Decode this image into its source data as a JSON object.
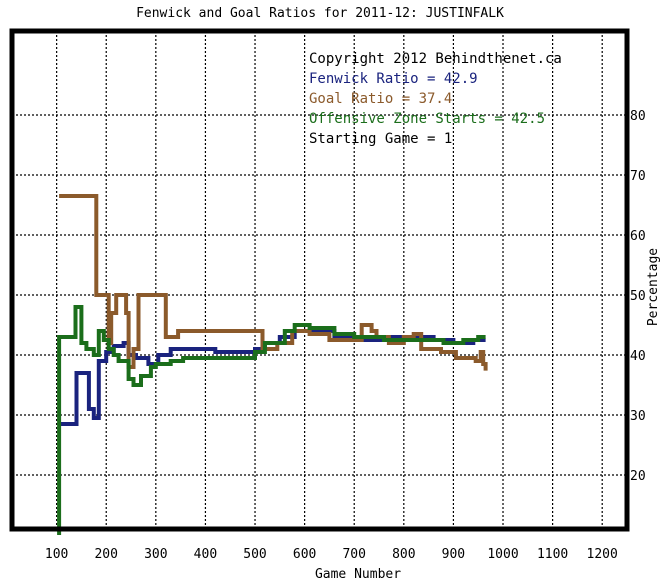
{
  "chart_data": {
    "type": "line",
    "title": "Fenwick and Goal Ratios for 2011-12: JUSTINFALK",
    "xlabel": "Game Number",
    "ylabel": "Percentage",
    "xlim": [
      10,
      1250
    ],
    "ylim": [
      11,
      94
    ],
    "xticks": [
      100,
      200,
      300,
      400,
      500,
      600,
      700,
      800,
      900,
      1000,
      1100,
      1200
    ],
    "yticks": [
      20,
      30,
      40,
      50,
      60,
      70,
      80
    ],
    "grid": true,
    "y_axis_side": "right",
    "legend_position": "top-right",
    "annotations": [
      {
        "text": "Copyright 2012 Behindthenet.ca",
        "color": "#000000"
      },
      {
        "text": "Fenwick Ratio = 42.9",
        "color": "#1a237e"
      },
      {
        "text": "Goal Ratio = 37.4",
        "color": "#8b5a2b"
      },
      {
        "text": "Offensive Zone Starts = 42.5",
        "color": "#1b6e1b"
      },
      {
        "text": "Starting Game = 1",
        "color": "#000000"
      }
    ],
    "series": [
      {
        "color": "#1a237e",
        "points": [
          [
            105,
            28.5
          ],
          [
            140,
            28.5
          ],
          [
            140,
            37
          ],
          [
            165,
            37
          ],
          [
            165,
            31
          ],
          [
            175,
            31
          ],
          [
            175,
            29.5
          ],
          [
            185,
            29.5
          ],
          [
            185,
            39
          ],
          [
            200,
            39
          ],
          [
            200,
            40.5
          ],
          [
            215,
            40.5
          ],
          [
            215,
            41.5
          ],
          [
            235,
            41.5
          ],
          [
            235,
            42
          ],
          [
            245,
            42
          ],
          [
            245,
            40
          ],
          [
            260,
            40
          ],
          [
            260,
            39.5
          ],
          [
            285,
            39.5
          ],
          [
            285,
            38.5
          ],
          [
            305,
            38.5
          ],
          [
            305,
            40
          ],
          [
            330,
            40
          ],
          [
            330,
            41
          ],
          [
            420,
            41
          ],
          [
            420,
            40.5
          ],
          [
            500,
            40.5
          ],
          [
            500,
            41
          ],
          [
            520,
            41
          ],
          [
            520,
            42
          ],
          [
            550,
            42
          ],
          [
            550,
            43
          ],
          [
            580,
            43
          ],
          [
            580,
            44
          ],
          [
            660,
            44
          ],
          [
            660,
            43
          ],
          [
            700,
            43
          ],
          [
            700,
            42.5
          ],
          [
            760,
            42.5
          ],
          [
            760,
            43
          ],
          [
            820,
            43
          ],
          [
            820,
            43
          ],
          [
            860,
            43
          ],
          [
            860,
            42.5
          ],
          [
            900,
            42.5
          ],
          [
            900,
            42
          ],
          [
            940,
            42
          ],
          [
            940,
            42.5
          ],
          [
            965,
            42.5
          ]
        ]
      },
      {
        "color": "#8b5a2b",
        "points": [
          [
            105,
            66.5
          ],
          [
            180,
            66.5
          ],
          [
            180,
            50
          ],
          [
            205,
            50
          ],
          [
            205,
            42
          ],
          [
            210,
            42
          ],
          [
            210,
            47
          ],
          [
            220,
            47
          ],
          [
            220,
            50
          ],
          [
            240,
            50
          ],
          [
            240,
            47
          ],
          [
            245,
            47
          ],
          [
            245,
            38
          ],
          [
            255,
            38
          ],
          [
            255,
            41
          ],
          [
            265,
            41
          ],
          [
            265,
            50
          ],
          [
            320,
            50
          ],
          [
            320,
            43
          ],
          [
            345,
            43
          ],
          [
            345,
            44
          ],
          [
            515,
            44
          ],
          [
            515,
            41
          ],
          [
            545,
            41
          ],
          [
            545,
            42
          ],
          [
            575,
            42
          ],
          [
            575,
            44
          ],
          [
            610,
            44
          ],
          [
            610,
            43.5
          ],
          [
            650,
            43.5
          ],
          [
            650,
            42.5
          ],
          [
            715,
            42.5
          ],
          [
            715,
            45
          ],
          [
            735,
            45
          ],
          [
            735,
            44
          ],
          [
            745,
            44
          ],
          [
            745,
            43
          ],
          [
            770,
            43
          ],
          [
            770,
            42
          ],
          [
            800,
            42
          ],
          [
            800,
            43
          ],
          [
            820,
            43
          ],
          [
            820,
            43.5
          ],
          [
            835,
            43.5
          ],
          [
            835,
            41
          ],
          [
            875,
            41
          ],
          [
            875,
            40.5
          ],
          [
            905,
            40.5
          ],
          [
            905,
            39.5
          ],
          [
            945,
            39.5
          ],
          [
            945,
            39
          ],
          [
            955,
            39
          ],
          [
            955,
            40.5
          ],
          [
            960,
            40.5
          ],
          [
            960,
            38.5
          ],
          [
            965,
            38.5
          ],
          [
            965,
            37.4
          ]
        ]
      },
      {
        "color": "#1b6e1b",
        "points": [
          [
            105,
            10
          ],
          [
            105,
            43
          ],
          [
            138,
            43
          ],
          [
            138,
            48
          ],
          [
            150,
            48
          ],
          [
            150,
            42
          ],
          [
            160,
            42
          ],
          [
            160,
            41
          ],
          [
            175,
            41
          ],
          [
            175,
            40
          ],
          [
            185,
            40
          ],
          [
            185,
            44
          ],
          [
            195,
            44
          ],
          [
            195,
            42.5
          ],
          [
            205,
            42.5
          ],
          [
            205,
            41
          ],
          [
            215,
            41
          ],
          [
            215,
            40
          ],
          [
            225,
            40
          ],
          [
            225,
            39
          ],
          [
            245,
            39
          ],
          [
            245,
            36
          ],
          [
            255,
            36
          ],
          [
            255,
            35
          ],
          [
            270,
            35
          ],
          [
            270,
            36.5
          ],
          [
            290,
            36.5
          ],
          [
            290,
            38
          ],
          [
            300,
            38
          ],
          [
            300,
            38.5
          ],
          [
            330,
            38.5
          ],
          [
            330,
            39
          ],
          [
            355,
            39
          ],
          [
            355,
            39.5
          ],
          [
            500,
            39.5
          ],
          [
            500,
            40.5
          ],
          [
            520,
            40.5
          ],
          [
            520,
            42
          ],
          [
            560,
            42
          ],
          [
            560,
            44
          ],
          [
            580,
            44
          ],
          [
            580,
            45
          ],
          [
            610,
            45
          ],
          [
            610,
            44.5
          ],
          [
            660,
            44.5
          ],
          [
            660,
            43.5
          ],
          [
            700,
            43.5
          ],
          [
            700,
            43
          ],
          [
            760,
            43
          ],
          [
            760,
            42.5
          ],
          [
            880,
            42.5
          ],
          [
            880,
            42
          ],
          [
            920,
            42
          ],
          [
            920,
            42.5
          ],
          [
            950,
            42.5
          ],
          [
            950,
            43
          ],
          [
            965,
            43
          ]
        ]
      }
    ]
  }
}
